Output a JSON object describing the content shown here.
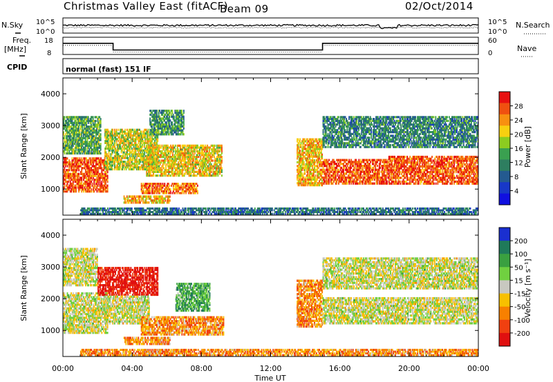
{
  "header": {
    "station": "Christmas Valley East (fitACF)",
    "beam": "Beam 09",
    "date": "02/Oct/2014"
  },
  "noise_panel": {
    "left_label": "N.Sky",
    "right_label": "N.Search",
    "left_ticks": [
      "10^5",
      "10^0"
    ],
    "right_ticks": [
      "10^5",
      "10^0"
    ]
  },
  "freq_panel": {
    "left_label": "Freq.",
    "left_unit": "[MHz]",
    "right_label": "Nave",
    "left_ticks": [
      "18",
      "8"
    ],
    "right_ticks": [
      "60",
      "0"
    ],
    "freq_segments": [
      {
        "from_hour": 0,
        "to_hour": 2.9,
        "freq_mhz": 14.5
      },
      {
        "from_hour": 2.9,
        "to_hour": 15.0,
        "freq_mhz": 10.6
      },
      {
        "from_hour": 15.0,
        "to_hour": 24,
        "freq_mhz": 14.5
      }
    ]
  },
  "cpid_panel": {
    "label": "CPID",
    "value": "normal (fast) 151 IF"
  },
  "chart_data": [
    {
      "type": "heatmap",
      "quantity": "power",
      "ylabel": "Slant Range [km]",
      "xlabel": "Time UT",
      "x_range_hours": [
        0,
        24
      ],
      "ylim": [
        180,
        4500
      ],
      "y_ticks": [
        1000,
        2000,
        3000,
        4000
      ],
      "x_tick_labels": [
        "00:00",
        "04:00",
        "08:00",
        "12:00",
        "16:00",
        "20:00",
        "00:00"
      ],
      "colorbar": {
        "label": "Power [dB]",
        "ticks": [
          "28",
          "24",
          "20",
          "16",
          "12",
          "8",
          "4"
        ],
        "colors": [
          "#e81010",
          "#f05010",
          "#f89010",
          "#f8d010",
          "#8ccc20",
          "#3aa050",
          "#2e7e60",
          "#245a90",
          "#1838c8",
          "#1010e0"
        ]
      },
      "regions": [
        {
          "h0": 0,
          "h1": 2.6,
          "r0": 900,
          "r1": 2000,
          "level": 0.85
        },
        {
          "h0": 0,
          "h1": 2.2,
          "r0": 2100,
          "r1": 3300,
          "level": 0.45
        },
        {
          "h0": 2.4,
          "h1": 5.5,
          "r0": 1600,
          "r1": 2900,
          "level": 0.6
        },
        {
          "h0": 4.5,
          "h1": 7.8,
          "r0": 850,
          "r1": 1200,
          "level": 0.8
        },
        {
          "h0": 4.8,
          "h1": 9.2,
          "r0": 1400,
          "r1": 2400,
          "level": 0.65
        },
        {
          "h0": 5.0,
          "h1": 7.0,
          "r0": 2700,
          "r1": 3500,
          "level": 0.4
        },
        {
          "h0": 3.5,
          "h1": 6.2,
          "r0": 550,
          "r1": 800,
          "level": 0.7
        },
        {
          "h0": 13.5,
          "h1": 15.0,
          "r0": 1100,
          "r1": 2600,
          "level": 0.7
        },
        {
          "h0": 15.0,
          "h1": 18.8,
          "r0": 1150,
          "r1": 1950,
          "level": 0.85
        },
        {
          "h0": 18.8,
          "h1": 24,
          "r0": 1150,
          "r1": 2050,
          "level": 0.85
        },
        {
          "h0": 15.0,
          "h1": 24,
          "r0": 2300,
          "r1": 3300,
          "level": 0.35
        },
        {
          "h0": 1.0,
          "h1": 24,
          "r0": 200,
          "r1": 420,
          "level": 0.3
        }
      ]
    },
    {
      "type": "heatmap",
      "quantity": "velocity",
      "ylabel": "Slant Range [km]",
      "xlabel": "Time UT",
      "x_range_hours": [
        0,
        24
      ],
      "ylim": [
        180,
        4500
      ],
      "y_ticks": [
        1000,
        2000,
        3000,
        4000
      ],
      "x_tick_labels": [
        "00:00",
        "04:00",
        "08:00",
        "12:00",
        "16:00",
        "20:00",
        "00:00"
      ],
      "colorbar": {
        "label": "Velocity [m s⁻¹]",
        "ticks": [
          "200",
          "100",
          "50",
          "15",
          "-15",
          "-50",
          "-100",
          "-200"
        ],
        "colors": [
          "#1a2fd0",
          "#1f7a5a",
          "#3aa040",
          "#70d040",
          "#c8c8c0",
          "#f8c000",
          "#f88000",
          "#f04010",
          "#e01010"
        ]
      },
      "regions": [
        {
          "h0": 0,
          "h1": 2.6,
          "r0": 900,
          "r1": 2200,
          "level": 0.5
        },
        {
          "h0": 0,
          "h1": 2.0,
          "r0": 2400,
          "r1": 3600,
          "level": 0.5
        },
        {
          "h0": 2.0,
          "h1": 5.5,
          "r0": 2100,
          "r1": 3000,
          "level": 0.05
        },
        {
          "h0": 2.4,
          "h1": 5.0,
          "r0": 1200,
          "r1": 2100,
          "level": 0.5
        },
        {
          "h0": 4.5,
          "h1": 9.3,
          "r0": 850,
          "r1": 1450,
          "level": 0.3
        },
        {
          "h0": 6.5,
          "h1": 8.5,
          "r0": 1600,
          "r1": 2500,
          "level": 0.7
        },
        {
          "h0": 3.5,
          "h1": 6.2,
          "r0": 550,
          "r1": 800,
          "level": 0.3
        },
        {
          "h0": 13.5,
          "h1": 15.0,
          "r0": 1100,
          "r1": 2600,
          "level": 0.3
        },
        {
          "h0": 15.0,
          "h1": 24,
          "r0": 1200,
          "r1": 2050,
          "level": 0.5
        },
        {
          "h0": 15.0,
          "h1": 24,
          "r0": 2300,
          "r1": 3300,
          "level": 0.5
        },
        {
          "h0": 1.0,
          "h1": 24,
          "r0": 200,
          "r1": 420,
          "level": 0.3
        }
      ]
    }
  ]
}
